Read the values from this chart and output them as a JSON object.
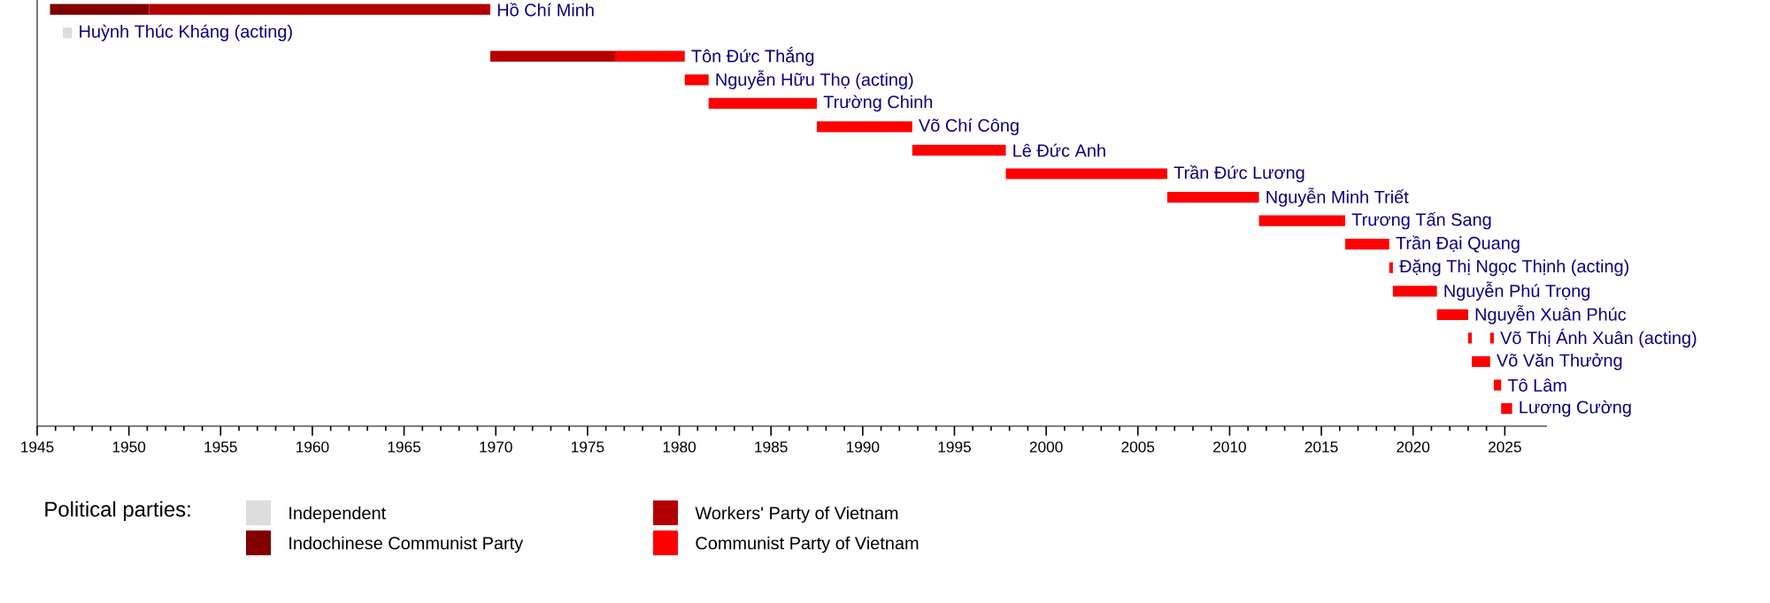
{
  "chart_data": {
    "type": "bar",
    "orientation": "horizontal",
    "categories": [
      "Hồ Chí Minh",
      "Huỳnh Thúc Kháng (acting)",
      "Tôn Đức Thắng",
      "Nguyễn Hữu Thọ (acting)",
      "Trường Chinh",
      "Võ Chí Công",
      "Lê Đức Anh",
      "Trần Đức Lương",
      "Nguyễn Minh Triết",
      "Trương Tấn Sang",
      "Trần Đại Quang",
      "Đặng Thị Ngọc Thịnh (acting)",
      "Nguyễn Phú Trọng",
      "Nguyễn Xuân Phúc",
      "Võ Thị Ánh Xuân (acting)",
      "Võ Văn Thưởng",
      "Tô Lâm",
      "Lương Cường"
    ],
    "series": [
      {
        "name": "Independent",
        "color": "#dddddd",
        "values": [
          null,
          0.5,
          null,
          null,
          null,
          null,
          null,
          null,
          null,
          null,
          null,
          null,
          null,
          null,
          null,
          null,
          null,
          null
        ],
        "base": [
          null,
          1946.4,
          null,
          null,
          null,
          null,
          null,
          null,
          null,
          null,
          null,
          null,
          null,
          null,
          null,
          null,
          null,
          null
        ]
      },
      {
        "name": "Indochinese Communist Party",
        "color": "#800000",
        "values": [
          5.4,
          null,
          null,
          null,
          null,
          null,
          null,
          null,
          null,
          null,
          null,
          null,
          null,
          null,
          null,
          null,
          null,
          null
        ],
        "base": [
          1945.7,
          null,
          null,
          null,
          null,
          null,
          null,
          null,
          null,
          null,
          null,
          null,
          null,
          null,
          null,
          null,
          null,
          null
        ]
      },
      {
        "name": "Workers' Party of Vietnam",
        "color": "#b30000",
        "values": [
          18.6,
          null,
          6.8,
          null,
          null,
          null,
          null,
          null,
          null,
          null,
          null,
          null,
          null,
          null,
          null,
          null,
          null,
          null
        ],
        "base": [
          1951.1,
          null,
          1969.7,
          null,
          null,
          null,
          null,
          null,
          null,
          null,
          null,
          null,
          null,
          null,
          null,
          null,
          null,
          null
        ]
      },
      {
        "name": "Communist Party of Vietnam",
        "color": "#ff0000",
        "values": [
          null,
          null,
          3.8,
          1.3,
          5.9,
          5.2,
          5.1,
          8.8,
          5.0,
          4.7,
          2.4,
          0.2,
          2.4,
          1.7,
          0.2,
          1.0,
          0.4,
          0.6
        ],
        "base": [
          null,
          null,
          1976.5,
          1980.3,
          1981.6,
          1987.5,
          1992.7,
          1997.8,
          2006.6,
          2011.6,
          2016.3,
          2018.7,
          2018.9,
          2021.3,
          2023.0,
          2023.2,
          2024.4,
          2024.8
        ]
      },
      {
        "color": "#ff0000",
        "values": [
          null,
          null,
          null,
          null,
          null,
          null,
          null,
          null,
          null,
          null,
          null,
          null,
          null,
          null,
          0.2,
          null,
          null,
          null
        ],
        "base": [
          null,
          null,
          null,
          null,
          null,
          null,
          null,
          null,
          null,
          null,
          null,
          null,
          null,
          null,
          2024.2,
          null,
          null,
          null
        ]
      }
    ],
    "xlim": [
      1945,
      2027.3
    ],
    "xticks": [
      1945,
      1950,
      1955,
      1960,
      1965,
      1970,
      1975,
      1980,
      1985,
      1990,
      1995,
      2000,
      2005,
      2010,
      2015,
      2020,
      2025
    ],
    "legend": "bottom",
    "legend_title": "Political parties:"
  }
}
